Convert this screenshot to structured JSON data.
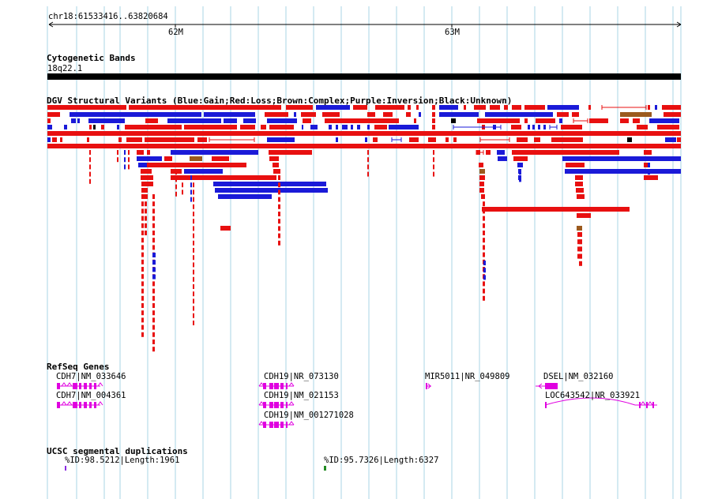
{
  "ruler": {
    "coordinate_range": "chr18:61533416..63820684",
    "ticks": [
      "62M",
      "63M"
    ]
  },
  "cytoband": {
    "title": "Cytogenetic Bands",
    "band": "18q22.1"
  },
  "dgv": {
    "title": "DGV Structural Variants (Blue:Gain;Red:Loss;Brown:Complex;Purple:Inversion;Black:Unknown)",
    "colors": {
      "gain": "#1a1ad8",
      "loss": "#e81010",
      "complex": "#9b5a1e",
      "inversion": "#8a2be2",
      "unknown": "#000000"
    }
  },
  "refseq": {
    "title": "RefSeq Genes",
    "color": "#e000e0",
    "genes": [
      "CDH7|NM_033646",
      "CDH7|NM_004361",
      "CDH19|NR_073130",
      "CDH19|NM_021153",
      "CDH19|NM_001271028",
      "MIR5011|NR_049809",
      "DSEL|NM_032160",
      "LOC643542|NR_033921"
    ]
  },
  "segdups": {
    "title": "UCSC segmental duplications",
    "items": [
      {
        "label": "%ID:98.5212|Length:1961",
        "color": "#8a2be2"
      },
      {
        "label": "%ID:95.7326|Length:6327",
        "color": "#228b22"
      }
    ]
  },
  "colors": {
    "grid": "#a8d4e6",
    "ruler": "#000000"
  }
}
